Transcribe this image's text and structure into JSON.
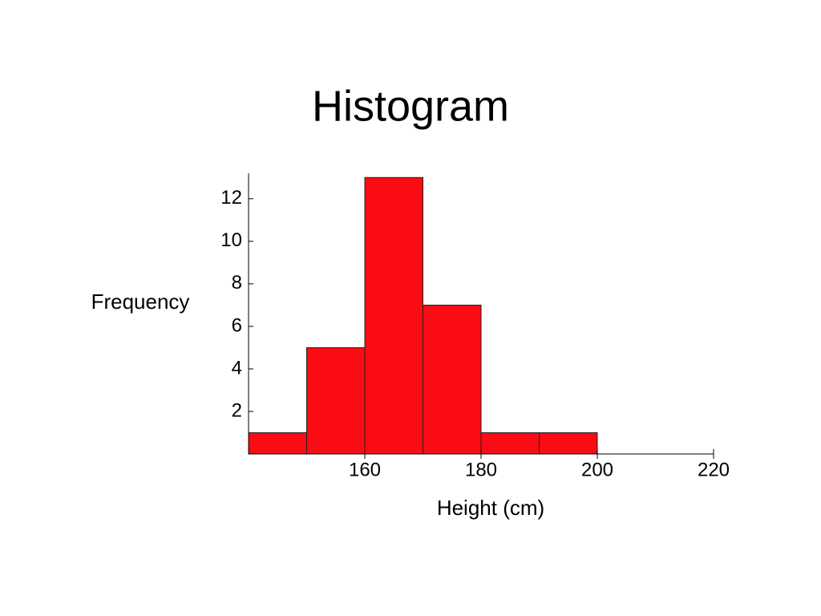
{
  "chart_data": {
    "type": "histogram",
    "title": "Histogram",
    "x_label": "Height (cm)",
    "y_label": "Frequency",
    "bins": [
      140,
      150,
      160,
      170,
      180,
      190,
      200
    ],
    "counts": [
      1,
      5,
      13,
      7,
      1,
      1
    ],
    "color": "#f90c13",
    "xlim": [
      140,
      220
    ],
    "xticks": [
      160,
      180,
      200,
      220
    ],
    "ylim": [
      0,
      13.2
    ],
    "yticks": [
      2,
      4,
      6,
      8,
      10,
      12
    ]
  }
}
